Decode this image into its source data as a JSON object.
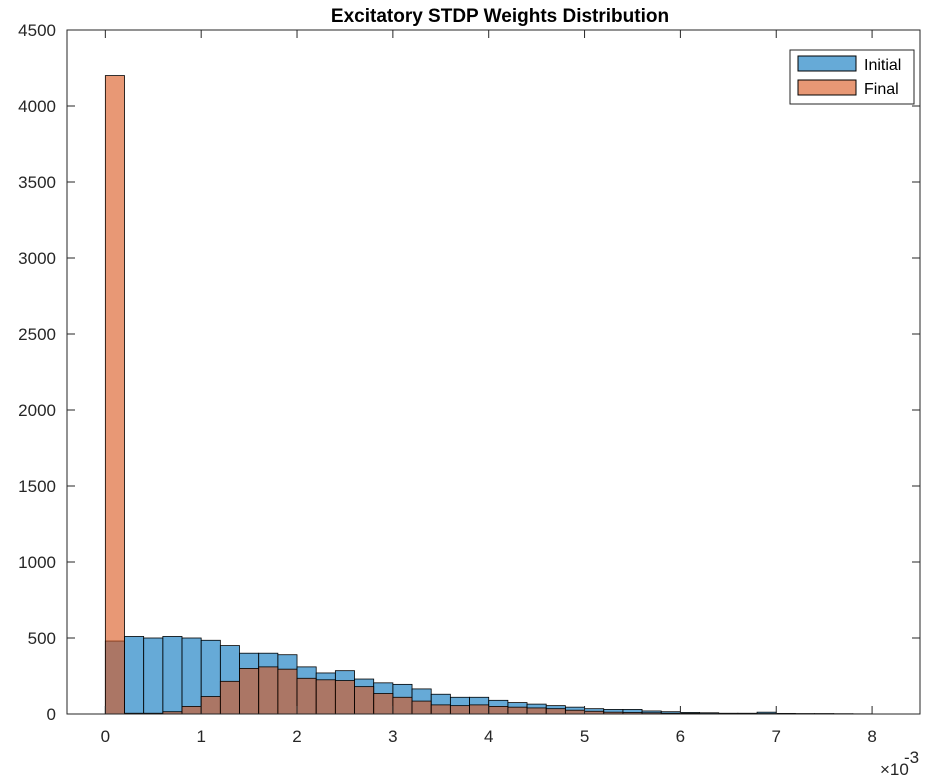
{
  "chart_data": {
    "type": "bar",
    "title": "Excitatory STDP Weights Distribution",
    "xlabel": "",
    "ylabel": "",
    "x_exponent_label": "×10",
    "x_exponent_power": "-3",
    "xlim": [
      -0.0004,
      0.0085
    ],
    "ylim": [
      0,
      4500
    ],
    "xticks": [
      0,
      0.001,
      0.002,
      0.003,
      0.004,
      0.005,
      0.006,
      0.007,
      0.008
    ],
    "xtick_labels": [
      "0",
      "1",
      "2",
      "3",
      "4",
      "5",
      "6",
      "7",
      "8"
    ],
    "yticks": [
      0,
      500,
      1000,
      1500,
      2000,
      2500,
      3000,
      3500,
      4000,
      4500
    ],
    "ytick_labels": [
      "0",
      "500",
      "1000",
      "1500",
      "2000",
      "2500",
      "3000",
      "3500",
      "4000",
      "4500"
    ],
    "bin_edges_start": 0,
    "bin_width": 0.0002,
    "legend": {
      "position": "top-right",
      "entries": [
        "Initial",
        "Final"
      ]
    },
    "series": [
      {
        "name": "Initial",
        "color": "#0072BD",
        "values": [
          480,
          510,
          500,
          510,
          500,
          485,
          450,
          400,
          400,
          390,
          310,
          270,
          285,
          230,
          205,
          195,
          165,
          130,
          110,
          110,
          90,
          75,
          65,
          55,
          45,
          35,
          30,
          30,
          20,
          15,
          10,
          8,
          5,
          5,
          12,
          4,
          3,
          3,
          2,
          1
        ]
      },
      {
        "name": "Final",
        "color": "#D95319",
        "values": [
          4200,
          5,
          5,
          15,
          50,
          115,
          215,
          300,
          310,
          295,
          235,
          225,
          220,
          180,
          135,
          110,
          85,
          60,
          55,
          60,
          50,
          45,
          40,
          35,
          25,
          18,
          12,
          10,
          8,
          5,
          4,
          3,
          2,
          2,
          3,
          2,
          1,
          1,
          1,
          1
        ]
      }
    ]
  }
}
